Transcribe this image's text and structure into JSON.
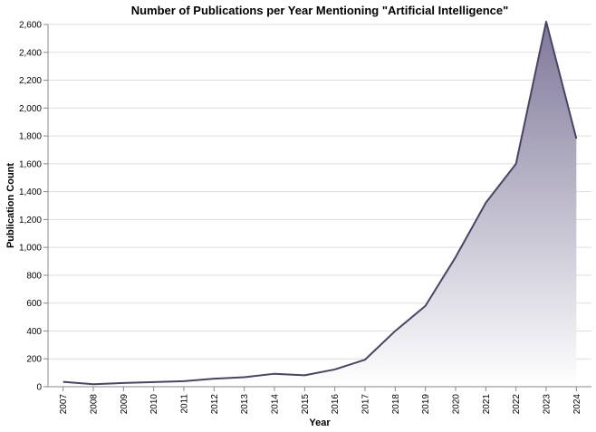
{
  "chart_data": {
    "type": "area",
    "title": "Number of Publications per Year Mentioning \"Artificial Intelligence\"",
    "xlabel": "Year",
    "ylabel": "Publication Count",
    "x": [
      "2007",
      "2008",
      "2009",
      "2010",
      "2011",
      "2012",
      "2013",
      "2014",
      "2015",
      "2016",
      "2017",
      "2018",
      "2019",
      "2020",
      "2021",
      "2022",
      "2023",
      "2024"
    ],
    "series": [
      {
        "values": [
          35,
          18,
          27,
          33,
          40,
          58,
          68,
          93,
          82,
          124,
          194,
          400,
          580,
          930,
          1320,
          1600,
          2620,
          1780
        ]
      }
    ],
    "ylim": [
      0,
      2600
    ],
    "yticks": [
      0,
      200,
      400,
      600,
      800,
      1000,
      1200,
      1400,
      1600,
      1800,
      2000,
      2200,
      2400,
      2600
    ],
    "grid": true,
    "colors": {
      "line": "#4b4366",
      "area_top": "#7f7899",
      "area_bottom": "#ffffff",
      "grid": "#dddddd",
      "axis": "#888888"
    }
  }
}
